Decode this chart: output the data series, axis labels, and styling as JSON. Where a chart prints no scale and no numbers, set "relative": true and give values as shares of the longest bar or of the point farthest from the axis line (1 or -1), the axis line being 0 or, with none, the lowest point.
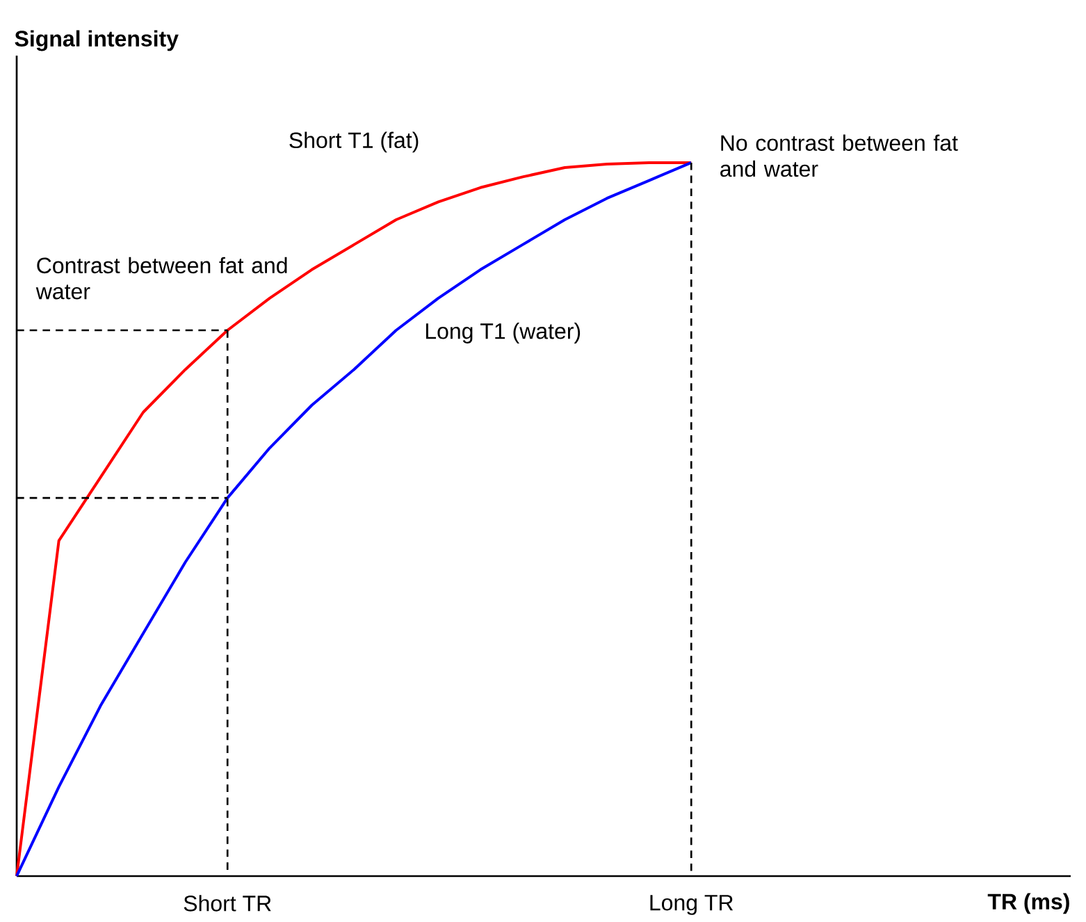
{
  "chart_data": {
    "type": "line",
    "relative": true,
    "xlabel": "TR (ms)",
    "categories": [
      null,
      null,
      null,
      null,
      null,
      "Short TR",
      null,
      null,
      null,
      null,
      null,
      null,
      null,
      null,
      null,
      null,
      "Long TR",
      null,
      null,
      null,
      null,
      null,
      null,
      null,
      null,
      null
    ],
    "tick_labels": "x",
    "series": [
      {
        "name": "Short T1 (fat)",
        "color": "#ff0000",
        "values": [
          0,
          0.47,
          0.56,
          0.65,
          0.71,
          0.765,
          0.81,
          0.85,
          0.885,
          0.92,
          0.945,
          0.965,
          0.98,
          0.993,
          0.998,
          1,
          1,
          null,
          null,
          null,
          null,
          null,
          null,
          null,
          null,
          null
        ]
      },
      {
        "name": "Long T1 (water)",
        "color": "#0000ff",
        "values": [
          0,
          0.125,
          0.24,
          0.34,
          0.44,
          0.53,
          0.6,
          0.66,
          0.71,
          0.765,
          0.81,
          0.85,
          0.885,
          0.92,
          0.95,
          0.975,
          1,
          null,
          null,
          null,
          null,
          null,
          null,
          null,
          null,
          null
        ]
      }
    ],
    "ref_lines": [
      {
        "axis": "x",
        "value": "Short TR",
        "color": "#000000",
        "line_style": "dashed"
      },
      {
        "axis": "x",
        "value": "Long TR",
        "color": "#000000",
        "line_style": "dashed"
      },
      {
        "axis": "y",
        "value": 0.765,
        "color": "#000000",
        "line_style": "dashed"
      },
      {
        "axis": "y",
        "value": 0.53,
        "color": "#000000",
        "line_style": "dashed"
      }
    ],
    "annotations": [
      "Signal intensity",
      {
        "text": "Contrast between fat and water",
        "x": "Short TR",
        "y": 0.765
      },
      {
        "text": "No contrast between fat and water",
        "x": "Long TR",
        "y": 1
      }
    ]
  }
}
